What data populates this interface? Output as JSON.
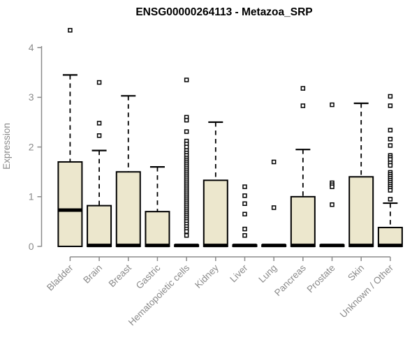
{
  "title": "ENSG00000264113 - Metazoa_SRP",
  "chart_data": {
    "type": "boxplot",
    "title": "ENSG00000264113 - Metazoa_SRP",
    "xlabel": "",
    "ylabel": "Expression",
    "ylim": [
      0,
      4.4
    ],
    "y_ticks": [
      0,
      1,
      2,
      3,
      4
    ],
    "grid": false,
    "legend": false,
    "box_fill": "#ece7cd",
    "box_stroke": "#000000",
    "axis_color": "#8a8a8a",
    "categories": [
      "Bladder",
      "Brain",
      "Breast",
      "Gastric",
      "Hematopoietic cells",
      "Kidney",
      "Liver",
      "Lung",
      "Pancreas",
      "Prostate",
      "Skin",
      "Unknown / Other"
    ],
    "series": [
      {
        "name": "Bladder",
        "whisker_low": 0,
        "q1": 0,
        "median": 0.73,
        "q3": 1.7,
        "whisker_high": 3.45,
        "outliers": [
          4.35
        ]
      },
      {
        "name": "Brain",
        "whisker_low": 0,
        "q1": 0,
        "median": 0.02,
        "q3": 0.82,
        "whisker_high": 1.93,
        "outliers": [
          3.3,
          2.48,
          2.23
        ]
      },
      {
        "name": "Breast",
        "whisker_low": 0,
        "q1": 0,
        "median": 0.02,
        "q3": 1.5,
        "whisker_high": 3.03,
        "outliers": []
      },
      {
        "name": "Gastric",
        "whisker_low": 0,
        "q1": 0,
        "median": 0.02,
        "q3": 0.7,
        "whisker_high": 1.6,
        "outliers": []
      },
      {
        "name": "Hematopoietic cells",
        "whisker_low": 0,
        "q1": 0,
        "median": 0.02,
        "q3": 0.03,
        "whisker_high": 0.03,
        "outliers": [
          3.35,
          2.6,
          2.54,
          2.31,
          2.12,
          2.06,
          2.0,
          1.93,
          1.88,
          1.83,
          1.78,
          1.74,
          1.7,
          1.66,
          1.62,
          1.58,
          1.54,
          1.5,
          1.46,
          1.42,
          1.38,
          1.34,
          1.3,
          1.26,
          1.22,
          1.18,
          1.14,
          1.1,
          1.06,
          1.02,
          0.98,
          0.94,
          0.9,
          0.86,
          0.82,
          0.78,
          0.74,
          0.7,
          0.66,
          0.62,
          0.58,
          0.54,
          0.5,
          0.45,
          0.4,
          0.35,
          0.3,
          0.22
        ]
      },
      {
        "name": "Kidney",
        "whisker_low": 0,
        "q1": 0,
        "median": 0.02,
        "q3": 1.33,
        "whisker_high": 2.5,
        "outliers": []
      },
      {
        "name": "Liver",
        "whisker_low": 0,
        "q1": 0,
        "median": 0.02,
        "q3": 0.03,
        "whisker_high": 0.03,
        "outliers": [
          1.2,
          1.02,
          0.86,
          0.65,
          0.35,
          0.22
        ]
      },
      {
        "name": "Lung",
        "whisker_low": 0,
        "q1": 0,
        "median": 0.02,
        "q3": 0.03,
        "whisker_high": 0.03,
        "outliers": [
          1.7,
          0.78
        ]
      },
      {
        "name": "Pancreas",
        "whisker_low": 0,
        "q1": 0,
        "median": 0.02,
        "q3": 1.0,
        "whisker_high": 1.95,
        "outliers": [
          3.18,
          2.83
        ]
      },
      {
        "name": "Prostate",
        "whisker_low": 0,
        "q1": 0,
        "median": 0.02,
        "q3": 0.03,
        "whisker_high": 0.03,
        "outliers": [
          2.85,
          1.28,
          1.24,
          1.2,
          0.84
        ]
      },
      {
        "name": "Skin",
        "whisker_low": 0,
        "q1": 0,
        "median": 0.02,
        "q3": 1.4,
        "whisker_high": 2.88,
        "outliers": []
      },
      {
        "name": "Unknown / Other",
        "whisker_low": 0,
        "q1": 0,
        "median": 0.02,
        "q3": 0.38,
        "whisker_high": 0.87,
        "outliers": [
          3.02,
          2.83,
          2.34,
          2.16,
          2.03,
          1.83,
          1.79,
          1.75,
          1.68,
          1.63,
          1.49,
          1.45,
          1.41,
          1.37,
          1.33,
          1.29,
          1.25,
          1.21,
          1.17,
          1.13,
          0.95
        ]
      }
    ]
  }
}
